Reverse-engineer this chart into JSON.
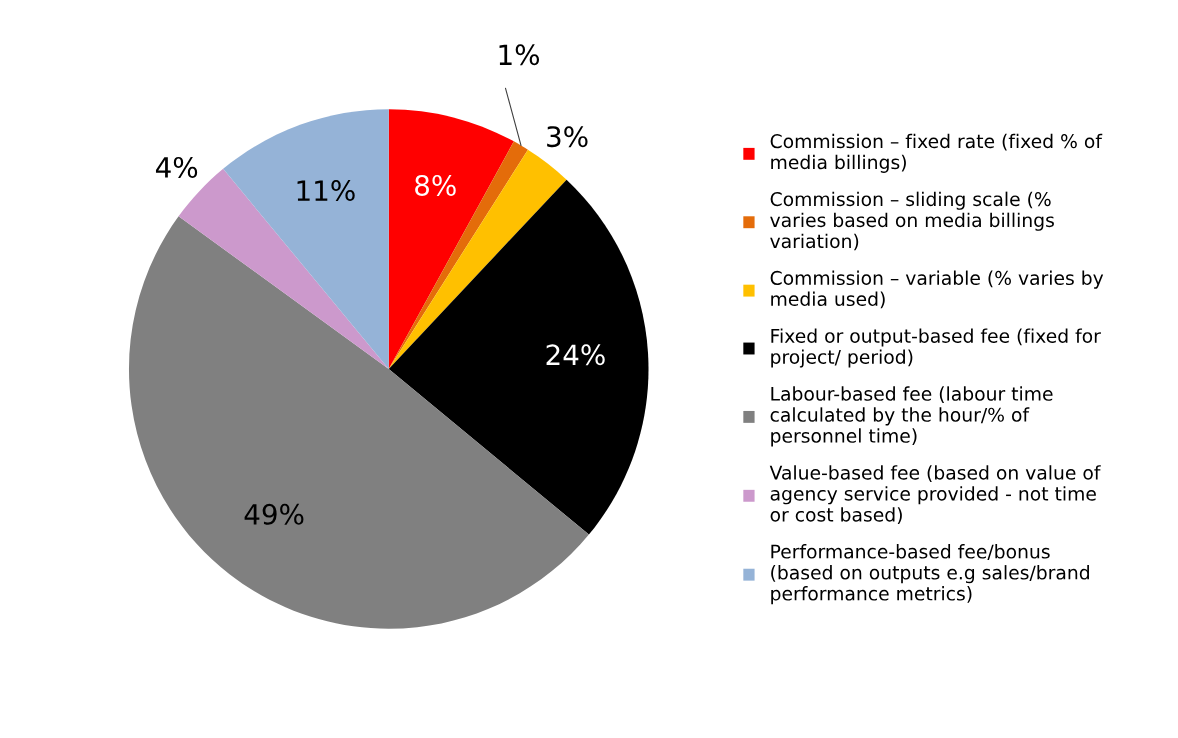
{
  "chart_data": {
    "type": "pie",
    "categories": [
      "Commission – fixed rate (fixed % of\nmedia billings)",
      "Commission – sliding scale (%\nvaries based on media billings\nvariation)",
      "Commission – variable (% varies by\nmedia used)",
      "Fixed or output-based fee (fixed for\nproject/ period)",
      "Labour-based fee (labour time\ncalculated by the hour/% of\npersonnel time)",
      "Value-based fee (based on value of\nagency service provided - not time\nor cost based)",
      "Performance-based fee/bonus\n(based on outputs e.g sales/brand\nperformance metrics)"
    ],
    "values": [
      8,
      1,
      3,
      24,
      49,
      4,
      11
    ],
    "colors": [
      "#ff0000",
      "#e46c0a",
      "#ffc000",
      "#000000",
      "#808080",
      "#cc99cc",
      "#95b3d7"
    ],
    "value_labels": [
      "8%",
      "1%",
      "3%",
      "24%",
      "49%",
      "4%",
      "11%"
    ],
    "legend": "right"
  }
}
